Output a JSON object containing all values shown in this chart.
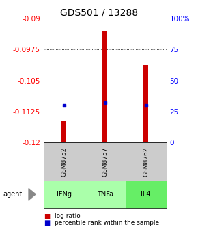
{
  "title": "GDS501 / 13288",
  "samples": [
    "GSM8752",
    "GSM8757",
    "GSM8762"
  ],
  "agents": [
    "IFNg",
    "TNFa",
    "IL4"
  ],
  "log_ratios": [
    -0.1148,
    -0.0932,
    -0.1012
  ],
  "log_ratio_base": -0.12,
  "percentile_ranks": [
    30,
    32,
    30
  ],
  "ylim_left": [
    -0.12,
    -0.09
  ],
  "ylim_right": [
    0,
    100
  ],
  "yticks_left": [
    -0.12,
    -0.1125,
    -0.105,
    -0.0975,
    -0.09
  ],
  "yticks_right": [
    0,
    25,
    50,
    75,
    100
  ],
  "ytick_labels_left": [
    "-0.12",
    "-0.1125",
    "-0.105",
    "-0.0975",
    "-0.09"
  ],
  "ytick_labels_right": [
    "0",
    "25",
    "50",
    "75",
    "100%"
  ],
  "grid_lines": [
    -0.0975,
    -0.105,
    -0.1125
  ],
  "bar_color": "#cc0000",
  "dot_color": "#0000cc",
  "agent_colors": [
    "#aaffaa",
    "#aaffaa",
    "#66ee66"
  ],
  "sample_color": "#cccccc",
  "title_fontsize": 10,
  "tick_fontsize": 7.5,
  "legend_fontsize": 6.5,
  "bar_width": 0.12
}
